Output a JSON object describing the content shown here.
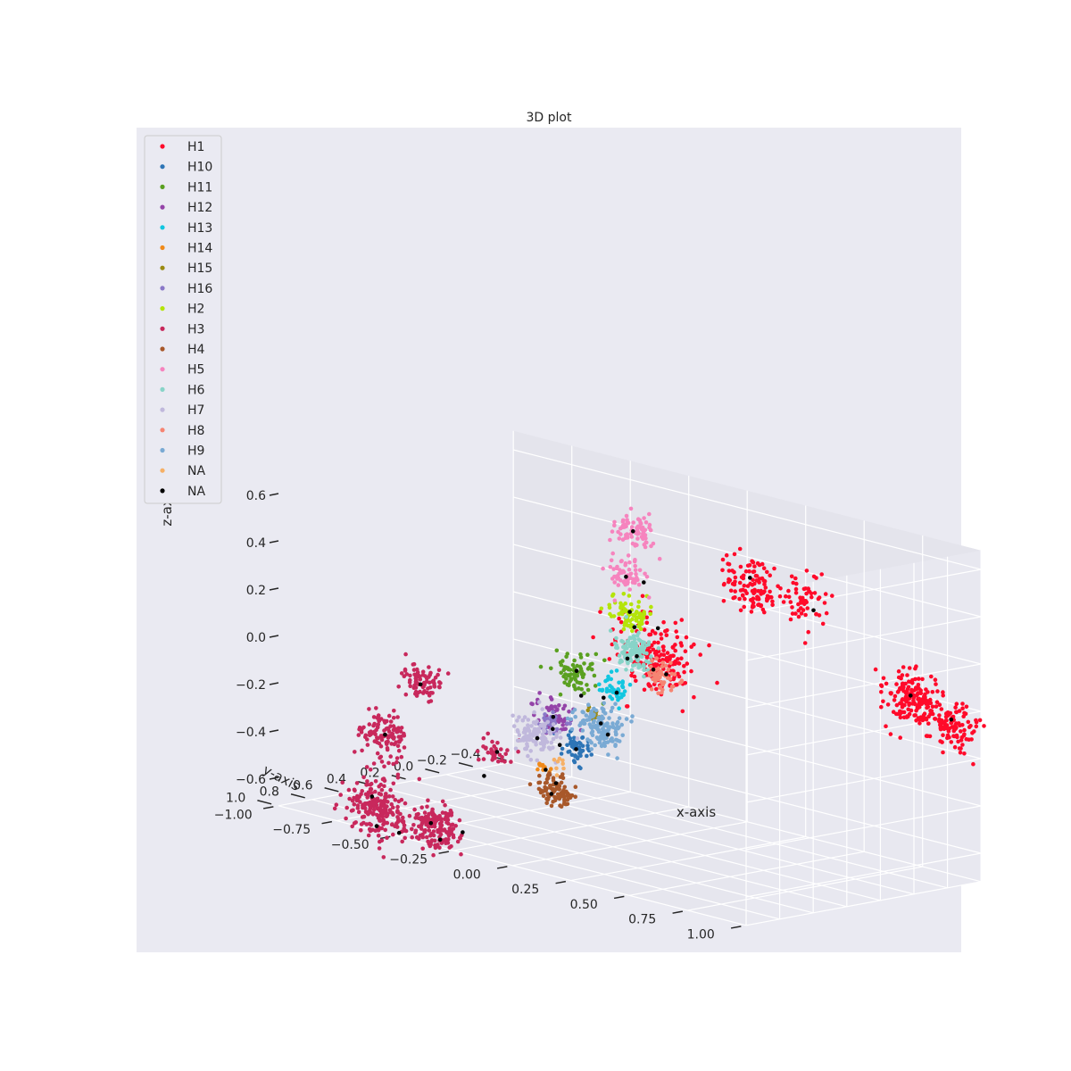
{
  "chart_data": {
    "type": "scatter",
    "title": "3D plot",
    "xlabel": "x-axis",
    "ylabel": "y-axis",
    "zlabel": "z-axis",
    "xlim": [
      -1.0,
      1.0
    ],
    "ylim": [
      -0.4,
      1.0
    ],
    "zlim": [
      -0.6,
      0.6
    ],
    "x_ticks": [
      "−1.00",
      "−0.75",
      "−0.50",
      "−0.25",
      "0.00",
      "0.25",
      "0.50",
      "0.75",
      "1.00"
    ],
    "y_ticks": [
      "1.0",
      "0.8",
      "0.6",
      "0.4",
      "0.2",
      "0.0",
      "−0.2",
      "−0.4"
    ],
    "z_ticks": [
      "−0.6",
      "−0.4",
      "−0.2",
      "0.0",
      "0.2",
      "0.4",
      "0.6"
    ],
    "grid": true,
    "legend_position": "top-left",
    "legend": [
      {
        "label": "H1",
        "color": "#ff0a2a"
      },
      {
        "label": "H10",
        "color": "#2e75b6"
      },
      {
        "label": "H11",
        "color": "#5aa020"
      },
      {
        "label": "H12",
        "color": "#9444a8"
      },
      {
        "label": "H13",
        "color": "#12c6e0"
      },
      {
        "label": "H14",
        "color": "#f08a1a"
      },
      {
        "label": "H15",
        "color": "#9a8a12"
      },
      {
        "label": "H16",
        "color": "#8a78c8"
      },
      {
        "label": "H2",
        "color": "#b4e40a"
      },
      {
        "label": "H3",
        "color": "#c8285c"
      },
      {
        "label": "H4",
        "color": "#a8582a"
      },
      {
        "label": "H5",
        "color": "#f684be"
      },
      {
        "label": "H6",
        "color": "#88d4c8"
      },
      {
        "label": "H7",
        "color": "#c0b8dc"
      },
      {
        "label": "H8",
        "color": "#f68472"
      },
      {
        "label": "H9",
        "color": "#7aaad4"
      },
      {
        "label": "NA",
        "color": "#f6b066"
      },
      {
        "label": "NA",
        "color": "#000000"
      }
    ],
    "series": [
      {
        "name": "H1",
        "color": "#ff0a2a",
        "clusters": [
          {
            "x": 0.55,
            "y": 0.35,
            "z": 0.52,
            "spread": 0.06,
            "count": 110
          },
          {
            "x": 0.72,
            "y": 0.25,
            "z": 0.48,
            "spread": 0.05,
            "count": 60
          },
          {
            "x": 0.28,
            "y": 0.55,
            "z": 0.17,
            "spread": 0.08,
            "count": 190
          },
          {
            "x": 0.95,
            "y": -0.05,
            "z": 0.08,
            "spread": 0.06,
            "count": 160
          },
          {
            "x": 0.98,
            "y": -0.25,
            "z": -0.05,
            "spread": 0.05,
            "count": 110
          }
        ]
      },
      {
        "name": "H10",
        "color": "#2e75b6",
        "clusters": [
          {
            "x": -0.05,
            "y": 0.55,
            "z": -0.3,
            "spread": 0.03,
            "count": 55
          }
        ]
      },
      {
        "name": "H11",
        "color": "#5aa020",
        "clusters": [
          {
            "x": -0.12,
            "y": 0.45,
            "z": 0.0,
            "spread": 0.04,
            "count": 75
          }
        ]
      },
      {
        "name": "H12",
        "color": "#9444a8",
        "clusters": [
          {
            "x": -0.22,
            "y": 0.45,
            "z": -0.22,
            "spread": 0.04,
            "count": 55
          }
        ]
      },
      {
        "name": "H13",
        "color": "#12c6e0",
        "clusters": [
          {
            "x": -0.02,
            "y": 0.35,
            "z": -0.07,
            "spread": 0.03,
            "count": 40
          }
        ]
      },
      {
        "name": "H14",
        "color": "#f08a1a",
        "clusters": [
          {
            "x": -0.18,
            "y": 0.55,
            "z": -0.42,
            "spread": 0.02,
            "count": 12
          }
        ]
      },
      {
        "name": "H15",
        "color": "#9a8a12",
        "clusters": [
          {
            "x": -0.05,
            "y": 0.45,
            "z": -0.17,
            "spread": 0.02,
            "count": 12
          }
        ]
      },
      {
        "name": "H16",
        "color": "#8a78c8",
        "clusters": [
          {
            "x": -0.15,
            "y": 0.55,
            "z": -0.22,
            "spread": 0.03,
            "count": 30
          }
        ]
      },
      {
        "name": "H2",
        "color": "#b4e40a",
        "clusters": [
          {
            "x": 0.0,
            "y": 0.3,
            "z": 0.25,
            "spread": 0.035,
            "count": 80
          }
        ]
      },
      {
        "name": "H3",
        "color": "#c8285c",
        "clusters": [
          {
            "x": -0.5,
            "y": 0.85,
            "z": -0.1,
            "spread": 0.04,
            "count": 80
          },
          {
            "x": -0.58,
            "y": 0.95,
            "z": -0.32,
            "spread": 0.05,
            "count": 110
          },
          {
            "x": -0.58,
            "y": 1.0,
            "z": -0.62,
            "spread": 0.06,
            "count": 210
          },
          {
            "x": -0.4,
            "y": 0.9,
            "z": -0.68,
            "spread": 0.05,
            "count": 160
          },
          {
            "x": -0.28,
            "y": 0.7,
            "z": -0.35,
            "spread": 0.03,
            "count": 35
          }
        ]
      },
      {
        "name": "H4",
        "color": "#a8582a",
        "clusters": [
          {
            "x": -0.1,
            "y": 0.6,
            "z": -0.48,
            "spread": 0.035,
            "count": 90
          }
        ]
      },
      {
        "name": "H5",
        "color": "#f684be",
        "clusters": [
          {
            "x": 0.05,
            "y": 0.35,
            "z": 0.62,
            "spread": 0.04,
            "count": 80
          },
          {
            "x": 0.02,
            "y": 0.35,
            "z": 0.42,
            "spread": 0.035,
            "count": 60
          }
        ]
      },
      {
        "name": "H6",
        "color": "#88d4c8",
        "clusters": [
          {
            "x": 0.02,
            "y": 0.3,
            "z": 0.1,
            "spread": 0.04,
            "count": 110
          }
        ]
      },
      {
        "name": "H7",
        "color": "#c0b8dc",
        "clusters": [
          {
            "x": -0.18,
            "y": 0.6,
            "z": -0.27,
            "spread": 0.045,
            "count": 110
          }
        ]
      },
      {
        "name": "H8",
        "color": "#f68472",
        "clusters": [
          {
            "x": 0.1,
            "y": 0.25,
            "z": 0.0,
            "spread": 0.035,
            "count": 50
          }
        ]
      },
      {
        "name": "H9",
        "color": "#7aaad4",
        "clusters": [
          {
            "x": 0.02,
            "y": 0.5,
            "z": -0.2,
            "spread": 0.045,
            "count": 140
          }
        ]
      },
      {
        "name": "NA",
        "color": "#f6b066",
        "clusters": [
          {
            "x": -0.12,
            "y": 0.55,
            "z": -0.38,
            "spread": 0.02,
            "count": 8
          }
        ]
      }
    ],
    "centroids": {
      "name": "NA",
      "color": "#000000",
      "points": [
        {
          "x": 0.55,
          "y": 0.35,
          "z": 0.55
        },
        {
          "x": 0.3,
          "y": 0.55,
          "z": 0.3
        },
        {
          "x": 0.28,
          "y": 0.55,
          "z": 0.12
        },
        {
          "x": 0.75,
          "y": 0.25,
          "z": 0.45
        },
        {
          "x": 0.95,
          "y": -0.05,
          "z": 0.1
        },
        {
          "x": 0.98,
          "y": -0.25,
          "z": -0.02
        },
        {
          "x": 0.05,
          "y": 0.35,
          "z": 0.62
        },
        {
          "x": 0.02,
          "y": 0.35,
          "z": 0.42
        },
        {
          "x": 0.06,
          "y": 0.3,
          "z": 0.4
        },
        {
          "x": 0.0,
          "y": 0.3,
          "z": 0.26
        },
        {
          "x": 0.02,
          "y": 0.3,
          "z": 0.2
        },
        {
          "x": 0.03,
          "y": 0.3,
          "z": 0.08
        },
        {
          "x": -0.01,
          "y": 0.3,
          "z": 0.06
        },
        {
          "x": 0.12,
          "y": 0.25,
          "z": 0.02
        },
        {
          "x": -0.12,
          "y": 0.45,
          "z": 0.0
        },
        {
          "x": -0.1,
          "y": 0.45,
          "z": -0.1
        },
        {
          "x": -0.02,
          "y": 0.35,
          "z": -0.08
        },
        {
          "x": -0.04,
          "y": 0.4,
          "z": -0.1
        },
        {
          "x": -0.22,
          "y": 0.45,
          "z": -0.22
        },
        {
          "x": -0.15,
          "y": 0.55,
          "z": -0.24
        },
        {
          "x": -0.18,
          "y": 0.6,
          "z": -0.28
        },
        {
          "x": -0.12,
          "y": 0.55,
          "z": -0.3
        },
        {
          "x": 0.02,
          "y": 0.5,
          "z": -0.18
        },
        {
          "x": 0.05,
          "y": 0.5,
          "z": -0.22
        },
        {
          "x": -0.05,
          "y": 0.55,
          "z": -0.3
        },
        {
          "x": -0.1,
          "y": 0.6,
          "z": -0.45
        },
        {
          "x": -0.12,
          "y": 0.6,
          "z": -0.5
        },
        {
          "x": -0.18,
          "y": 0.55,
          "z": -0.42
        },
        {
          "x": -0.5,
          "y": 0.85,
          "z": -0.1
        },
        {
          "x": -0.58,
          "y": 0.95,
          "z": -0.32
        },
        {
          "x": -0.6,
          "y": 1.0,
          "z": -0.58
        },
        {
          "x": -0.58,
          "y": 1.0,
          "z": -0.7
        },
        {
          "x": -0.52,
          "y": 0.95,
          "z": -0.72
        },
        {
          "x": -0.42,
          "y": 0.9,
          "z": -0.66
        },
        {
          "x": -0.38,
          "y": 0.9,
          "z": -0.72
        },
        {
          "x": -0.32,
          "y": 0.85,
          "z": -0.68
        },
        {
          "x": -0.28,
          "y": 0.7,
          "z": -0.35
        },
        {
          "x": -0.3,
          "y": 0.75,
          "z": -0.45
        }
      ]
    }
  }
}
